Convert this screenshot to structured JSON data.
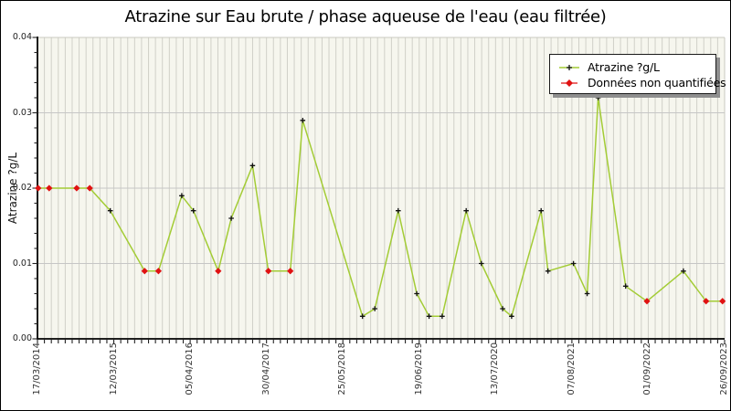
{
  "chart_data": {
    "type": "line",
    "title": "Atrazine sur Eau brute / phase aqueuse de l'eau (eau filtrée)",
    "ylabel": "Atrazine ?g/L",
    "xlabel": "",
    "ylim": [
      0,
      0.04
    ],
    "y_tick_labels": [
      "0.04",
      "0.03",
      "0.02",
      "0.01",
      "0.00"
    ],
    "y_major_step": 0.01,
    "y_minor_step": 0.002,
    "x_range": [
      "17/03/2014",
      "26/09/2023"
    ],
    "x_tick_labels": [
      "17/03/2014",
      "12/03/2015",
      "05/04/2016",
      "30/04/2017",
      "25/05/2018",
      "19/06/2019",
      "13/07/2020",
      "07/08/2021",
      "01/09/2022",
      "26/09/2023"
    ],
    "grid": "vertical minor gridlines (monthly) + horizontal major gridlines",
    "legend": {
      "position": "top-right",
      "items": [
        {
          "label": "Atrazine ?g/L",
          "marker": "plus",
          "marker_color": "#111111",
          "line_color": "#a3cc35"
        },
        {
          "label": "Données non quantifiées",
          "marker": "diamond",
          "marker_color": "#e01212"
        }
      ]
    },
    "series": [
      {
        "name": "Atrazine ?g/L",
        "unit": "?g/L",
        "note": "f = fractional position along time axis 17/03/2014 -> 26/09/2023; q = quantified (black plus) vs non-quantified (red diamond)",
        "points": [
          {
            "f": 0.001,
            "v": 0.02,
            "q": false
          },
          {
            "f": 0.017,
            "v": 0.02,
            "q": false
          },
          {
            "f": 0.057,
            "v": 0.02,
            "q": false
          },
          {
            "f": 0.076,
            "v": 0.02,
            "q": false
          },
          {
            "f": 0.106,
            "v": 0.017,
            "q": true
          },
          {
            "f": 0.156,
            "v": 0.009,
            "q": false
          },
          {
            "f": 0.176,
            "v": 0.009,
            "q": false
          },
          {
            "f": 0.21,
            "v": 0.019,
            "q": true
          },
          {
            "f": 0.227,
            "v": 0.017,
            "q": true
          },
          {
            "f": 0.263,
            "v": 0.009,
            "q": false
          },
          {
            "f": 0.282,
            "v": 0.016,
            "q": true
          },
          {
            "f": 0.313,
            "v": 0.023,
            "q": true
          },
          {
            "f": 0.336,
            "v": 0.009,
            "q": false
          },
          {
            "f": 0.368,
            "v": 0.009,
            "q": false
          },
          {
            "f": 0.386,
            "v": 0.029,
            "q": true
          },
          {
            "f": 0.473,
            "v": 0.003,
            "q": true
          },
          {
            "f": 0.491,
            "v": 0.004,
            "q": true
          },
          {
            "f": 0.525,
            "v": 0.017,
            "q": true
          },
          {
            "f": 0.552,
            "v": 0.006,
            "q": true
          },
          {
            "f": 0.57,
            "v": 0.003,
            "q": true
          },
          {
            "f": 0.589,
            "v": 0.003,
            "q": true
          },
          {
            "f": 0.624,
            "v": 0.017,
            "q": true
          },
          {
            "f": 0.646,
            "v": 0.01,
            "q": true
          },
          {
            "f": 0.677,
            "v": 0.004,
            "q": true
          },
          {
            "f": 0.69,
            "v": 0.003,
            "q": true
          },
          {
            "f": 0.733,
            "v": 0.017,
            "q": true
          },
          {
            "f": 0.743,
            "v": 0.009,
            "q": true
          },
          {
            "f": 0.78,
            "v": 0.01,
            "q": true
          },
          {
            "f": 0.8,
            "v": 0.006,
            "q": true
          },
          {
            "f": 0.816,
            "v": 0.032,
            "q": true
          },
          {
            "f": 0.856,
            "v": 0.007,
            "q": true
          },
          {
            "f": 0.887,
            "v": 0.005,
            "q": false
          },
          {
            "f": 0.94,
            "v": 0.009,
            "q": true
          },
          {
            "f": 0.973,
            "v": 0.005,
            "q": false
          },
          {
            "f": 0.997,
            "v": 0.005,
            "q": false
          }
        ]
      }
    ],
    "colors": {
      "line": "#a3cc35",
      "marker_quantified": "#111111",
      "marker_nonquantified": "#e01212",
      "plot_bg": "#f6f6ee",
      "grid_v": "#d0d0c8",
      "grid_h": "#c6c6c6",
      "axis": "#000000",
      "frame_light": "#c9c9c0"
    }
  }
}
